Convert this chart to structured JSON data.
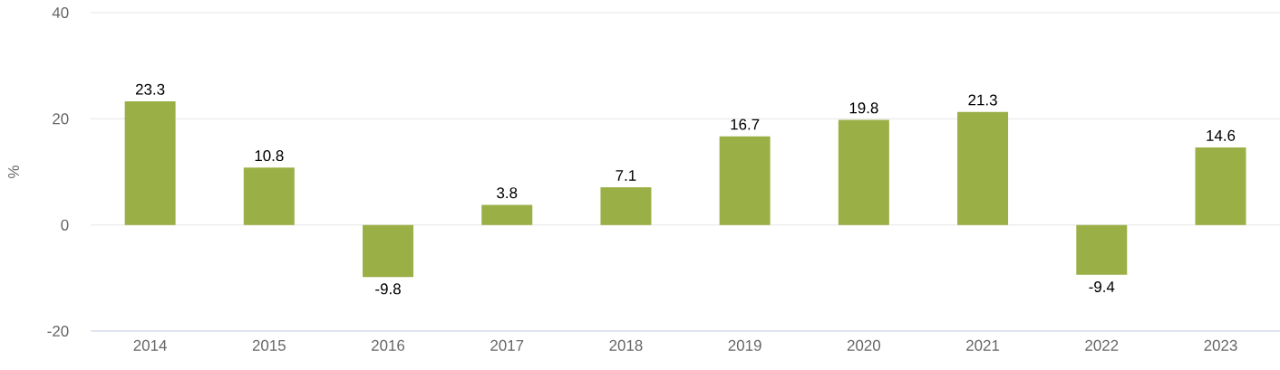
{
  "chart_data": {
    "type": "bar",
    "ylabel": "%",
    "categories": [
      "2014",
      "2015",
      "2016",
      "2017",
      "2018",
      "2019",
      "2020",
      "2021",
      "2022",
      "2023"
    ],
    "values": [
      23.3,
      10.8,
      -9.8,
      3.8,
      7.1,
      16.7,
      19.8,
      21.3,
      -9.4,
      14.6
    ],
    "color": "#9aaf45",
    "ylim": [
      -20,
      40
    ],
    "yticks": [
      -20,
      0,
      20,
      40
    ],
    "grid": "y",
    "data_labels": true
  }
}
